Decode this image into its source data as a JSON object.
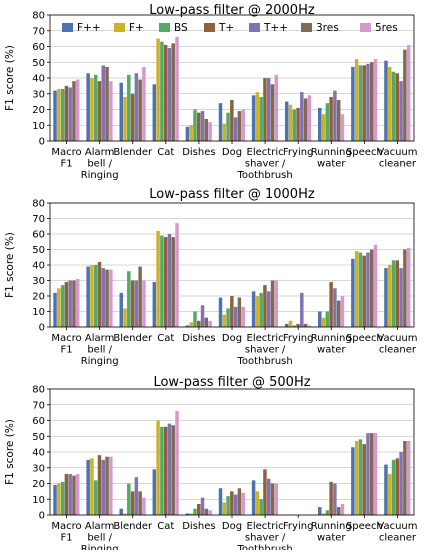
{
  "chart_data": [
    {
      "type": "bar",
      "title": "Low-pass filter @ 2000Hz",
      "ylabel": "F1 score (%)",
      "ylim": [
        0,
        80
      ],
      "yticks": [
        0,
        10,
        20,
        30,
        40,
        50,
        60,
        70,
        80
      ],
      "categories": [
        [
          "Macro",
          "F1"
        ],
        [
          "Alarm",
          "bell /",
          "Ringing"
        ],
        [
          "Blender"
        ],
        [
          "Cat"
        ],
        [
          "Dishes"
        ],
        [
          "Dog"
        ],
        [
          "Electric",
          "shaver /",
          "Toothbrush"
        ],
        [
          "Frying"
        ],
        [
          "Running",
          "water"
        ],
        [
          "Speech"
        ],
        [
          "Vacuum",
          "cleaner"
        ]
      ],
      "legend": "top",
      "series": [
        {
          "name": "F++",
          "values": [
            32,
            43,
            37,
            36,
            9,
            24,
            29,
            25,
            21,
            47,
            51
          ]
        },
        {
          "name": "F+",
          "values": [
            33,
            40,
            28,
            65,
            10,
            11,
            31,
            23,
            17,
            52,
            47
          ]
        },
        {
          "name": "BS",
          "values": [
            33,
            42,
            42,
            63,
            20,
            18,
            28,
            20,
            24,
            48,
            44
          ]
        },
        {
          "name": "T+",
          "values": [
            35,
            38,
            30,
            61,
            18,
            26,
            40,
            21,
            28,
            48,
            43
          ]
        },
        {
          "name": "T++",
          "values": [
            34,
            48,
            43,
            59,
            19,
            15,
            40,
            31,
            32,
            49,
            38
          ]
        },
        {
          "name": "3res",
          "values": [
            38,
            47,
            39,
            62,
            14,
            19,
            36,
            27,
            26,
            50,
            58
          ]
        },
        {
          "name": "5res",
          "values": [
            39,
            38,
            47,
            66,
            12,
            20,
            42,
            29,
            17,
            52,
            61
          ]
        }
      ]
    },
    {
      "type": "bar",
      "title": "Low-pass filter @ 1000Hz",
      "ylabel": "F1 score (%)",
      "ylim": [
        0,
        80
      ],
      "yticks": [
        0,
        10,
        20,
        30,
        40,
        50,
        60,
        70,
        80
      ],
      "categories": [
        [
          "Macro",
          "F1"
        ],
        [
          "Alarm",
          "bell /",
          "Ringing"
        ],
        [
          "Blender"
        ],
        [
          "Cat"
        ],
        [
          "Dishes"
        ],
        [
          "Dog"
        ],
        [
          "Electric",
          "shaver /",
          "Toothbrush"
        ],
        [
          "Frying"
        ],
        [
          "Running",
          "water"
        ],
        [
          "Speech"
        ],
        [
          "Vacuum",
          "cleaner"
        ]
      ],
      "legend": "none",
      "series": [
        {
          "name": "F++",
          "values": [
            22,
            39,
            22,
            29,
            1,
            19,
            23,
            2,
            10,
            44,
            38
          ]
        },
        {
          "name": "F+",
          "values": [
            25,
            40,
            12,
            62,
            3,
            8,
            20,
            4,
            6,
            49,
            40
          ]
        },
        {
          "name": "BS",
          "values": [
            27,
            40,
            36,
            59,
            10,
            12,
            22,
            1,
            10,
            48,
            43
          ]
        },
        {
          "name": "T+",
          "values": [
            29,
            42,
            30,
            58,
            4,
            20,
            27,
            2,
            29,
            46,
            43
          ]
        },
        {
          "name": "T++",
          "values": [
            30,
            38,
            30,
            60,
            14,
            13,
            23,
            22,
            25,
            48,
            38
          ]
        },
        {
          "name": "3res",
          "values": [
            30,
            37,
            39,
            58,
            6,
            19,
            30,
            2,
            17,
            50,
            50
          ]
        },
        {
          "name": "5res",
          "values": [
            31,
            37,
            30,
            67,
            4,
            13,
            30,
            1,
            20,
            53,
            51
          ]
        }
      ]
    },
    {
      "type": "bar",
      "title": "Low-pass filter @ 500Hz",
      "ylabel": "F1 score (%)",
      "ylim": [
        0,
        80
      ],
      "yticks": [
        0,
        10,
        20,
        30,
        40,
        50,
        60,
        70,
        80
      ],
      "categories": [
        [
          "Macro",
          "F1"
        ],
        [
          "Alarm",
          "bell /",
          "Ringing"
        ],
        [
          "Blender"
        ],
        [
          "Cat"
        ],
        [
          "Dishes"
        ],
        [
          "Dog"
        ],
        [
          "Electric",
          "shaver /",
          "Toothbrush"
        ],
        [
          "Frying"
        ],
        [
          "Running",
          "water"
        ],
        [
          "Speech"
        ],
        [
          "Vacuum",
          "cleaner"
        ]
      ],
      "legend": "none",
      "series": [
        {
          "name": "F++",
          "values": [
            19,
            35,
            4,
            29,
            1,
            17,
            22,
            0,
            5,
            43,
            32
          ]
        },
        {
          "name": "F+",
          "values": [
            20,
            36,
            1,
            60,
            1,
            8,
            15,
            0,
            1,
            47,
            26
          ]
        },
        {
          "name": "BS",
          "values": [
            21,
            22,
            20,
            56,
            4,
            12,
            10,
            0,
            3,
            48,
            35
          ]
        },
        {
          "name": "T+",
          "values": [
            26,
            38,
            15,
            56,
            7,
            15,
            29,
            0,
            21,
            45,
            36
          ]
        },
        {
          "name": "T++",
          "values": [
            26,
            35,
            24,
            58,
            11,
            13,
            23,
            0,
            20,
            52,
            40
          ]
        },
        {
          "name": "3res",
          "values": [
            25,
            37,
            15,
            57,
            4,
            17,
            20,
            0,
            5,
            52,
            47
          ]
        },
        {
          "name": "5res",
          "values": [
            26,
            37,
            11,
            66,
            3,
            14,
            20,
            0,
            7,
            52,
            47
          ]
        }
      ]
    }
  ],
  "colors": [
    "#4c72b0",
    "#ccb22b",
    "#55a868",
    "#8c613c",
    "#8172b2",
    "#806a52",
    "#d798d0"
  ]
}
